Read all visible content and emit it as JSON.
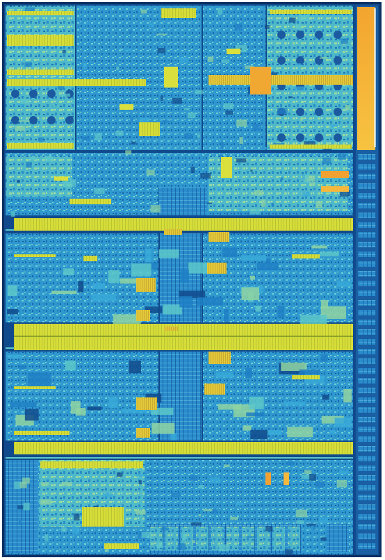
{
  "image": {
    "subject": "processor-die-micrograph",
    "caption": "",
    "palette": {
      "substrate_dark": "#0a2f63",
      "substrate": "#114a8c",
      "logic_blue": "#1f7fc4",
      "logic_cyan": "#37a9d8",
      "logic_teal": "#5cc7c9",
      "logic_green": "#8fd3a2",
      "cache_yellow": "#d9df3c",
      "cache_gold": "#e9c83a",
      "hot_orange": "#f1a131",
      "hot_amber": "#f6b83c",
      "edge_white": "#eaf6f6"
    }
  }
}
